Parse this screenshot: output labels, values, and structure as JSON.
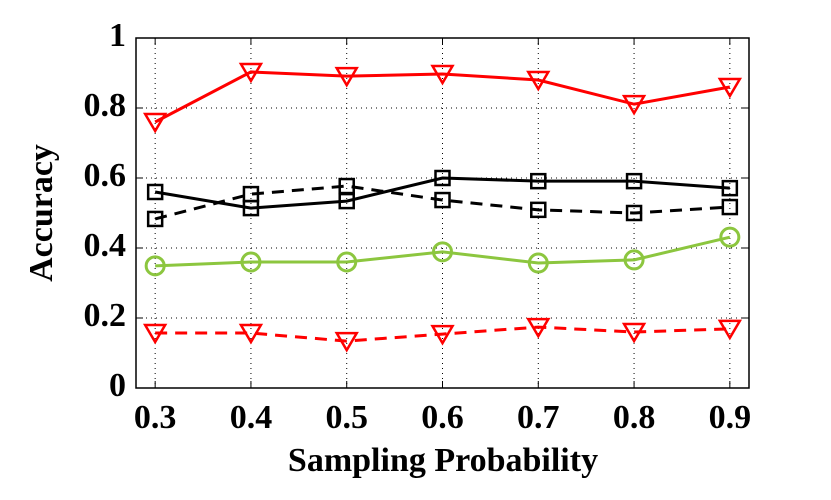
{
  "chart_data": {
    "type": "line",
    "xlabel": "Sampling Probability",
    "ylabel": "Accuracy",
    "x": [
      0.3,
      0.4,
      0.5,
      0.6,
      0.7,
      0.8,
      0.9
    ],
    "xlim": [
      0.28,
      0.92
    ],
    "xticks": [
      0.3,
      0.4,
      0.5,
      0.6,
      0.7,
      0.8,
      0.9
    ],
    "ylim": [
      0,
      1
    ],
    "yticks": [
      0,
      0.2,
      0.4,
      0.6,
      0.8,
      1
    ],
    "grid": true,
    "series": [
      {
        "color": "#ff0000",
        "linestyle": "solid",
        "marker": "triangle-down",
        "values": [
          0.76,
          0.903,
          0.891,
          0.897,
          0.88,
          0.811,
          0.86
        ]
      },
      {
        "color": "#000000",
        "linestyle": "solid",
        "marker": "square",
        "values": [
          0.56,
          0.514,
          0.534,
          0.6,
          0.591,
          0.591,
          0.571
        ]
      },
      {
        "color": "#000000",
        "linestyle": "dashed",
        "marker": "square",
        "values": [
          0.483,
          0.554,
          0.577,
          0.537,
          0.509,
          0.5,
          0.517
        ]
      },
      {
        "color": "#8cc63f",
        "linestyle": "solid",
        "marker": "circle",
        "values": [
          0.349,
          0.36,
          0.36,
          0.389,
          0.357,
          0.366,
          0.431
        ]
      },
      {
        "color": "#ff0000",
        "linestyle": "dashed",
        "marker": "triangle-down",
        "values": [
          0.157,
          0.157,
          0.134,
          0.154,
          0.174,
          0.16,
          0.169
        ]
      }
    ]
  }
}
